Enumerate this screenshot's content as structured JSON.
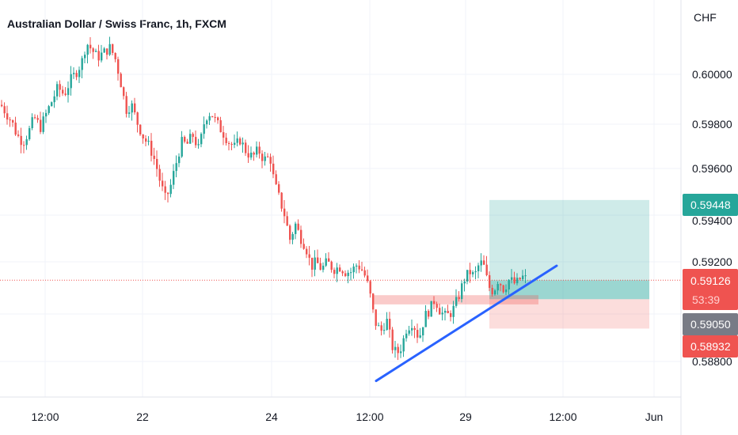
{
  "chart_data": {
    "type": "candlestick",
    "title": "Australian Dollar / Swiss Franc, 1h, FXCM",
    "currency": "CHF",
    "ylim": [
      0.5871,
      0.6024
    ],
    "y_ticks": [
      "0.60000",
      "0.59800",
      "0.59600",
      "0.59400",
      "0.59200",
      "0.58800"
    ],
    "x_ticks": [
      "12:00",
      "22",
      "24",
      "12:00",
      "29",
      "12:00",
      "Jun"
    ],
    "colors": {
      "up": "#26a69a",
      "down": "#ef5350",
      "trendline": "#2962ff",
      "grid": "#f0f3fa"
    },
    "price_path": [
      [
        0,
        0.5983
      ],
      [
        8,
        0.5979
      ],
      [
        14,
        0.5976
      ],
      [
        20,
        0.5971
      ],
      [
        28,
        0.5968
      ],
      [
        35,
        0.5972
      ],
      [
        42,
        0.5978
      ],
      [
        50,
        0.5974
      ],
      [
        58,
        0.598
      ],
      [
        65,
        0.5985
      ],
      [
        72,
        0.599
      ],
      [
        80,
        0.5987
      ],
      [
        88,
        0.5993
      ],
      [
        95,
        0.5996
      ],
      [
        102,
        0.6
      ],
      [
        108,
        0.6008
      ],
      [
        115,
        0.6005
      ],
      [
        122,
        0.6002
      ],
      [
        130,
        0.6004
      ],
      [
        138,
        0.6006
      ],
      [
        145,
        0.6001
      ],
      [
        152,
        0.5991
      ],
      [
        158,
        0.5981
      ],
      [
        165,
        0.5983
      ],
      [
        172,
        0.5976
      ],
      [
        180,
        0.597
      ],
      [
        188,
        0.5966
      ],
      [
        195,
        0.596
      ],
      [
        202,
        0.5951
      ],
      [
        208,
        0.5945
      ],
      [
        214,
        0.595
      ],
      [
        220,
        0.5958
      ],
      [
        228,
        0.5968
      ],
      [
        235,
        0.5967
      ],
      [
        242,
        0.5971
      ],
      [
        250,
        0.5965
      ],
      [
        258,
        0.5978
      ],
      [
        265,
        0.598
      ],
      [
        272,
        0.5976
      ],
      [
        280,
        0.5972
      ],
      [
        288,
        0.5968
      ],
      [
        295,
        0.5966
      ],
      [
        302,
        0.5969
      ],
      [
        310,
        0.5964
      ],
      [
        318,
        0.5962
      ],
      [
        325,
        0.5965
      ],
      [
        332,
        0.5961
      ],
      [
        340,
        0.5962
      ],
      [
        345,
        0.5952
      ],
      [
        352,
        0.5945
      ],
      [
        358,
        0.5939
      ],
      [
        365,
        0.5929
      ],
      [
        372,
        0.5935
      ],
      [
        378,
        0.593
      ],
      [
        385,
        0.5926
      ],
      [
        392,
        0.5918
      ],
      [
        398,
        0.592
      ],
      [
        405,
        0.5917
      ],
      [
        412,
        0.592
      ],
      [
        420,
        0.5917
      ],
      [
        428,
        0.5918
      ],
      [
        435,
        0.5916
      ],
      [
        442,
        0.5916
      ],
      [
        450,
        0.5919
      ],
      [
        458,
        0.5916
      ],
      [
        465,
        0.5909
      ],
      [
        472,
        0.5896
      ],
      [
        480,
        0.5892
      ],
      [
        487,
        0.5897
      ],
      [
        494,
        0.5886
      ],
      [
        500,
        0.5883
      ],
      [
        506,
        0.5886
      ],
      [
        512,
        0.5893
      ],
      [
        520,
        0.5896
      ],
      [
        528,
        0.5889
      ],
      [
        535,
        0.5898
      ],
      [
        542,
        0.5901
      ],
      [
        548,
        0.5905
      ],
      [
        555,
        0.59
      ],
      [
        562,
        0.5898
      ],
      [
        570,
        0.59
      ],
      [
        578,
        0.5906
      ],
      [
        585,
        0.5913
      ],
      [
        592,
        0.5916
      ],
      [
        598,
        0.5914
      ],
      [
        605,
        0.592
      ],
      [
        610,
        0.5918
      ],
      [
        616,
        0.591
      ],
      [
        622,
        0.5908
      ],
      [
        628,
        0.5913
      ],
      [
        635,
        0.5909
      ],
      [
        642,
        0.5913
      ],
      [
        650,
        0.5911
      ],
      [
        658,
        0.5914
      ],
      [
        664,
        0.5913
      ]
    ],
    "trendline": [
      [
        475,
        0.58722
      ],
      [
        703,
        0.59184
      ]
    ],
    "annotations": {
      "demand_zone": {
        "y0": 0.59066,
        "y1": 0.59029,
        "x0": 470,
        "x1": 680
      },
      "profit_zone": {
        "y0": 0.59448,
        "y1": 0.5905,
        "x0": 618,
        "x1": 820
      },
      "loss_zone": {
        "y0": 0.5905,
        "y1": 0.58932,
        "x0": 618,
        "x1": 820
      },
      "position_highlight": {
        "y0": 0.59126,
        "y1": 0.5905,
        "x0": 618,
        "x1": 820
      },
      "current_price_line": 0.59126
    },
    "price_labels": {
      "target": "0.59448",
      "current": "0.59126",
      "countdown": "53:39",
      "entry": "0.59050",
      "stop": "0.58932"
    }
  }
}
